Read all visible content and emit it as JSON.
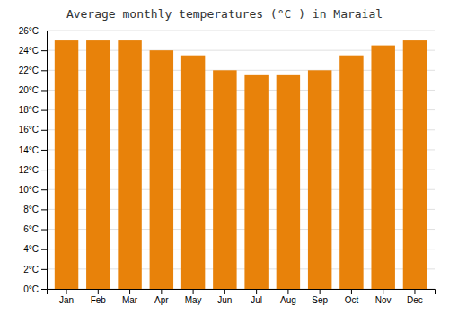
{
  "chart_data": {
    "type": "bar",
    "title": "Average monthly temperatures (°C ) in Maraial",
    "categories": [
      "Jan",
      "Feb",
      "Mar",
      "Apr",
      "May",
      "Jun",
      "Jul",
      "Aug",
      "Sep",
      "Oct",
      "Nov",
      "Dec"
    ],
    "values": [
      25.0,
      25.0,
      25.0,
      24.0,
      23.5,
      22.0,
      21.5,
      21.5,
      22.0,
      23.5,
      24.5,
      25.0
    ],
    "color": "#E8820A",
    "ylim": [
      0,
      26
    ],
    "yticks": [
      {
        "value": 0,
        "label": "0°C"
      },
      {
        "value": 2,
        "label": "2°C"
      },
      {
        "value": 4,
        "label": "4°C"
      },
      {
        "value": 6,
        "label": "6°C"
      },
      {
        "value": 8,
        "label": "8°C"
      },
      {
        "value": 10,
        "label": "10°C"
      },
      {
        "value": 12,
        "label": "12°C"
      },
      {
        "value": 14,
        "label": "14°C"
      },
      {
        "value": 16,
        "label": "16°C"
      },
      {
        "value": 18,
        "label": "18°C"
      },
      {
        "value": 20,
        "label": "20°C"
      },
      {
        "value": 22,
        "label": "22°C"
      },
      {
        "value": 24,
        "label": "24°C"
      },
      {
        "value": 26,
        "label": "26°C"
      }
    ],
    "grid": true
  }
}
